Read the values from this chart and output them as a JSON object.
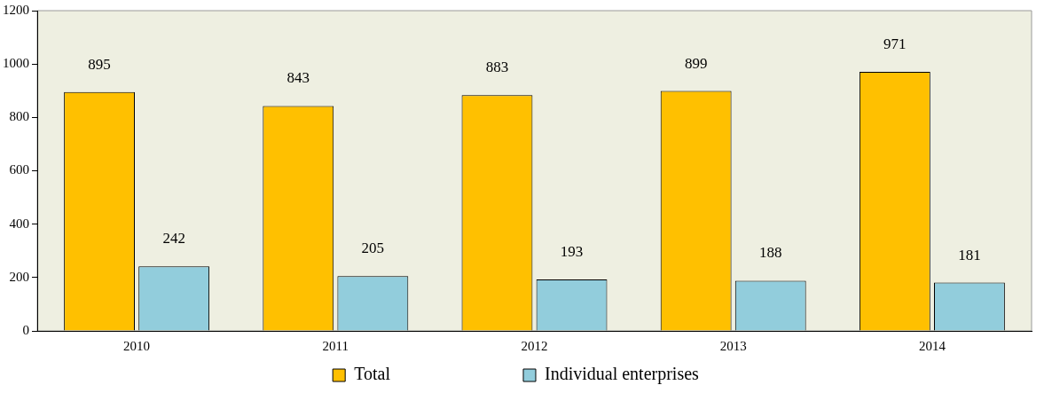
{
  "chart_data": {
    "type": "bar",
    "categories": [
      "2010",
      "2011",
      "2012",
      "2013",
      "2014"
    ],
    "series": [
      {
        "name": "Total",
        "color": "#ffc000",
        "values": [
          895,
          843,
          883,
          899,
          971
        ]
      },
      {
        "name": "Individual enterprises",
        "color": "#92cddc",
        "values": [
          242,
          205,
          193,
          188,
          181
        ]
      }
    ],
    "ylim": [
      0,
      1200
    ],
    "yticks": [
      0,
      200,
      400,
      600,
      800,
      1000,
      1200
    ],
    "grid": false,
    "legend": "bottom",
    "data_labels": true
  }
}
